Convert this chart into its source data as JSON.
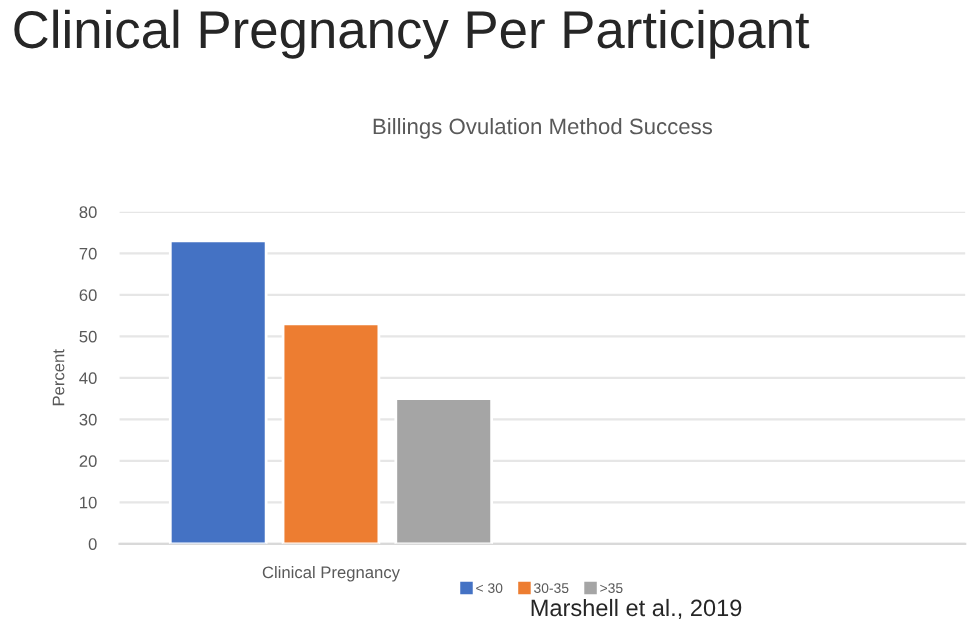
{
  "chart_data": {
    "type": "bar",
    "title": "Billings Ovulation Method Success",
    "ylabel": "Percent",
    "annotations": [
      "Clinical Pregnancy Per Participant",
      "Marshell et al., 2019"
    ],
    "categories": [
      "Clinical Pregnancy",
      null
    ],
    "series": [
      {
        "name": "< 30",
        "color": "#4472c4",
        "values": [
          73,
          null
        ]
      },
      {
        "name": "30-35",
        "color": "#ed7d31",
        "values": [
          53,
          null
        ]
      },
      {
        "name": ">35",
        "color": "#a5a5a5",
        "values": [
          35,
          null
        ]
      }
    ],
    "ylim": [
      0,
      80
    ],
    "yticks": [
      0,
      10,
      20,
      30,
      40,
      50,
      60,
      70,
      80
    ],
    "grid": "y",
    "legend": "bottom"
  }
}
